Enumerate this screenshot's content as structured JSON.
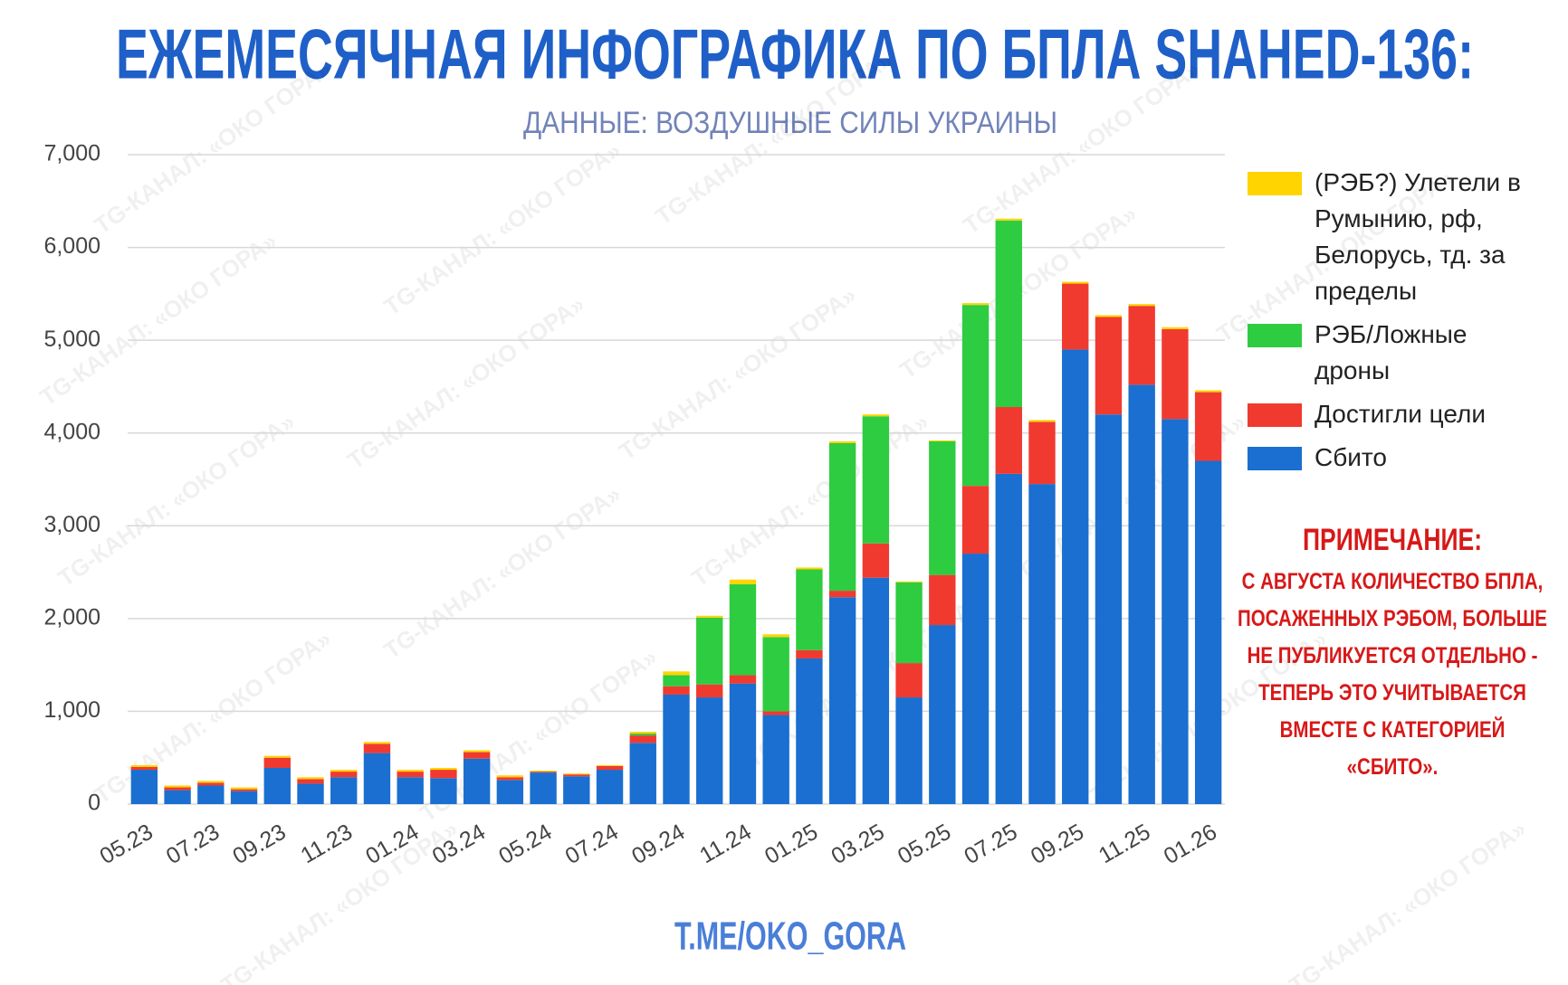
{
  "chart_data": {
    "type": "stacked_bar",
    "title": "ЕЖЕМЕСЯЧНАЯ ИНФОГРАФИКА ПО БПЛА SHAHED-136:",
    "subtitle": "ДАННЫЕ: ВОЗДУШНЫЕ СИЛЫ УКРАИНЫ",
    "footer": "T.ME/OKO_GORA",
    "watermark": "TG-КАНАЛ: «ОКО ГОРА»",
    "note_title": "ПРИМЕЧАНИЕ:",
    "note_text": "С АВГУСТА КОЛИЧЕСТВО БПЛА, ПОСАЖЕННЫХ РЭБОМ, БОЛЬШЕ НЕ ПУБЛИКУЕТСЯ ОТДЕЛЬНО - ТЕПЕРЬ ЭТО УЧИТЫВАЕТСЯ ВМЕСТЕ С КАТЕГОРИЕЙ «СБИТО».",
    "categories": [
      "05.23",
      null,
      "07.23",
      null,
      "09.23",
      null,
      "11.23",
      null,
      "01.24",
      null,
      "03.24",
      null,
      "05.24",
      null,
      "07.24",
      null,
      "09.24",
      null,
      "11.24",
      null,
      "01.25",
      null,
      "03.25",
      null,
      "05.25",
      null,
      "07.25",
      null,
      "09.25",
      null,
      "11.25",
      null,
      "01.26"
    ],
    "series": [
      {
        "name": "Сбито",
        "color": "#1a6fd0",
        "values": [
          370,
          150,
          200,
          140,
          390,
          220,
          290,
          550,
          290,
          280,
          490,
          260,
          340,
          300,
          370,
          660,
          1180,
          1150,
          1300,
          960,
          1570,
          2230,
          2440,
          1150,
          1930,
          2700,
          3560,
          3450,
          4900,
          4200,
          4520,
          4150,
          3700
        ]
      },
      {
        "name": "Достигли цели",
        "color": "#f03a30",
        "values": [
          30,
          30,
          30,
          20,
          110,
          50,
          60,
          100,
          60,
          90,
          70,
          30,
          10,
          20,
          40,
          80,
          90,
          140,
          90,
          40,
          90,
          70,
          370,
          370,
          540,
          730,
          720,
          670,
          710,
          1050,
          850,
          970,
          740
        ]
      },
      {
        "name": "РЭБ/Ложные дроны",
        "color": "#2ecc40",
        "values": [
          0,
          0,
          0,
          0,
          0,
          0,
          0,
          0,
          0,
          0,
          0,
          0,
          0,
          0,
          0,
          20,
          120,
          720,
          980,
          800,
          870,
          1590,
          1370,
          870,
          1440,
          1950,
          2010,
          0,
          0,
          0,
          0,
          0,
          0
        ]
      },
      {
        "name": "(РЭБ?) Улетели в Румынию, рф, Белорусь, тд. за пределы",
        "color": "#ffd400",
        "values": [
          20,
          20,
          20,
          20,
          20,
          20,
          20,
          20,
          20,
          20,
          20,
          20,
          10,
          10,
          10,
          20,
          40,
          20,
          50,
          30,
          20,
          20,
          20,
          10,
          10,
          20,
          20,
          20,
          20,
          20,
          20,
          20,
          20
        ]
      }
    ],
    "ylim": [
      0,
      7000
    ],
    "yticks": [
      0,
      {
        "value": 1000,
        "label": "1,000"
      },
      {
        "value": 2000,
        "label": "2,000"
      },
      {
        "value": 3000,
        "label": "3,000"
      },
      {
        "value": 4000,
        "label": "4,000"
      },
      {
        "value": 5000,
        "label": "5,000"
      },
      {
        "value": 6000,
        "label": "6,000"
      },
      {
        "value": 7000,
        "label": "7,000"
      }
    ],
    "grid": true
  }
}
